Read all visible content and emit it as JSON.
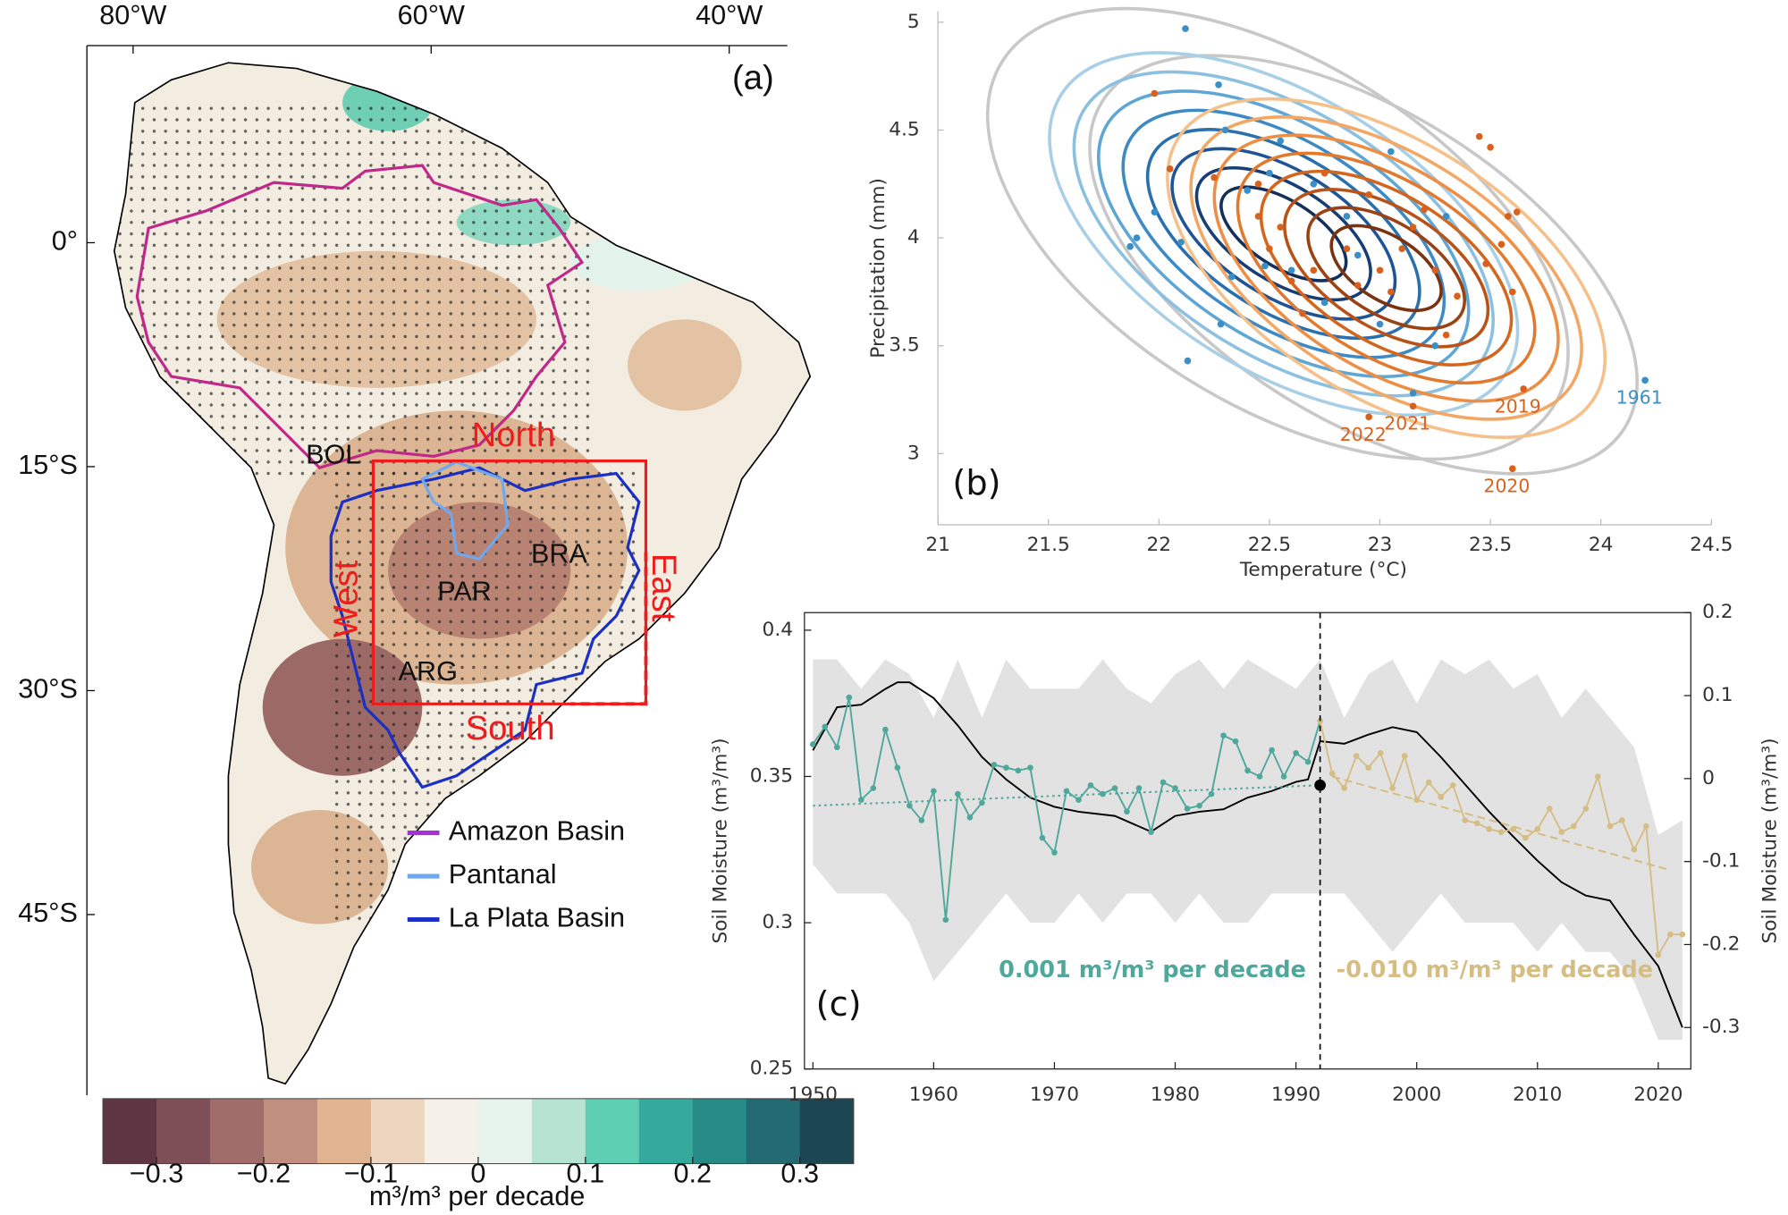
{
  "chart_data": [
    {
      "type": "map",
      "panel_label": "(a)",
      "xlim": [
        -83.1,
        -36.1
      ],
      "ylim": [
        -57.1,
        13.2
      ],
      "xticks": [
        {
          "value": -80,
          "label": "80°W"
        },
        {
          "value": -60,
          "label": "60°W"
        },
        {
          "value": -40,
          "label": "40°W"
        }
      ],
      "yticks": [
        {
          "value": 0,
          "label": "0°"
        },
        {
          "value": -15,
          "label": "15°S"
        },
        {
          "value": -30,
          "label": "30°S"
        },
        {
          "value": -45,
          "label": "45°S"
        }
      ],
      "countries": [
        "BOL",
        "BRA",
        "PAR",
        "ARG"
      ],
      "regions": [
        "North",
        "South",
        "East",
        "West"
      ],
      "legend": [
        {
          "name": "Amazon Basin",
          "color": "#a431d6"
        },
        {
          "name": "Pantanal",
          "color": "#6fa8ee"
        },
        {
          "name": "La Plata Basin",
          "color": "#1a2fc4"
        }
      ],
      "colorbar": {
        "label": "m³/m³ per decade",
        "colors": [
          "#5e3543",
          "#7e4f57",
          "#a06d6a",
          "#c08f80",
          "#e0b48f",
          "#ecd6bf",
          "#f6f1e8",
          "#e7f4ee",
          "#b7e3d2",
          "#5fcfb3",
          "#35a99c",
          "#268a87",
          "#236a73",
          "#1c4652"
        ],
        "lim": [
          -0.35,
          0.35
        ],
        "ticks": [
          {
            "value": -0.3,
            "label": "−0.3"
          },
          {
            "value": -0.2,
            "label": "−0.2"
          },
          {
            "value": -0.1,
            "label": "−0.1"
          },
          0,
          0.1,
          0.2,
          0.3
        ]
      }
    },
    {
      "type": "scatter",
      "panel_label": "(b)",
      "x_label": "Temperature (°C)",
      "y_label": "Precipitation (mm)",
      "xlim": [
        21,
        24.5
      ],
      "ylim": [
        2.67,
        5.05
      ],
      "xticks": [
        21,
        21.5,
        22,
        22.5,
        23,
        23.5,
        24,
        24.5
      ],
      "yticks": [
        3,
        3.5,
        4,
        4.5,
        5
      ],
      "series": [
        {
          "color": "#3a8fc7",
          "x": [
            22.12,
            22.27,
            21.87,
            21.9,
            22.1,
            22.13,
            22.28,
            22.3,
            22.4,
            22.5,
            22.48,
            22.33,
            22.6,
            22.75,
            22.7,
            22.85,
            22.9,
            23.0,
            23.15,
            23.25,
            23.3,
            23.05,
            22.55,
            21.98,
            24.2
          ],
          "y": [
            4.97,
            4.71,
            3.96,
            4.0,
            3.98,
            3.43,
            3.6,
            4.5,
            4.22,
            4.3,
            3.87,
            3.82,
            3.85,
            3.7,
            4.25,
            4.1,
            3.92,
            3.6,
            3.28,
            3.5,
            4.1,
            4.4,
            4.45,
            4.12,
            3.34
          ],
          "point_labels": [
            null,
            null,
            null,
            null,
            null,
            null,
            null,
            null,
            null,
            null,
            null,
            null,
            null,
            null,
            null,
            null,
            null,
            null,
            null,
            null,
            null,
            null,
            null,
            null,
            "1961"
          ]
        },
        {
          "color": "#d9611c",
          "x": [
            21.98,
            22.05,
            22.25,
            22.45,
            22.45,
            22.5,
            22.55,
            22.6,
            22.65,
            22.7,
            22.75,
            22.85,
            22.9,
            22.95,
            23.0,
            23.05,
            23.1,
            23.15,
            23.2,
            23.25,
            23.3,
            23.35,
            23.48,
            23.55,
            23.6,
            23.58,
            23.45,
            23.5,
            23.62,
            23.65,
            23.6,
            23.15,
            22.95
          ],
          "y": [
            4.67,
            4.32,
            4.28,
            4.25,
            4.1,
            3.95,
            4.05,
            3.8,
            3.65,
            3.85,
            4.3,
            3.95,
            3.78,
            4.2,
            3.85,
            3.75,
            3.95,
            4.05,
            4.13,
            3.85,
            3.55,
            3.73,
            3.88,
            3.97,
            3.75,
            4.1,
            4.47,
            4.42,
            4.12,
            3.3,
            2.93,
            3.22,
            3.17
          ],
          "point_labels": [
            null,
            null,
            null,
            null,
            null,
            null,
            null,
            null,
            null,
            null,
            null,
            null,
            null,
            null,
            null,
            null,
            null,
            null,
            null,
            null,
            null,
            null,
            null,
            null,
            null,
            null,
            null,
            null,
            null,
            "2019",
            "2020",
            "2021",
            "2022"
          ]
        }
      ]
    },
    {
      "type": "line",
      "panel_label": "(c)",
      "y_label": "Soil Moisture (m³/m³)",
      "y2_label": "Soil Moisture (m³/m³)",
      "xlim": [
        1949.3,
        2022.7
      ],
      "xticks": [
        1950,
        1960,
        1970,
        1980,
        1990,
        2000,
        2010,
        2020
      ],
      "ylim": [
        0.25,
        0.406
      ],
      "yticks": [
        0.25,
        0.3,
        0.35,
        0.4
      ],
      "y2lim": [
        -0.35,
        0.2
      ],
      "y2ticks": [
        -0.3,
        -0.2,
        -0.1,
        0,
        0.1,
        0.2
      ],
      "band": {
        "color": "#e2e2e2",
        "x": [
          1950,
          1952,
          1954,
          1956,
          1958,
          1960,
          1962,
          1964,
          1966,
          1968,
          1970,
          1972,
          1974,
          1976,
          1978,
          1980,
          1982,
          1984,
          1986,
          1988,
          1990,
          1992,
          1994,
          1996,
          1998,
          2000,
          2002,
          2004,
          2006,
          2008,
          2010,
          2012,
          2014,
          2016,
          2018,
          2020,
          2022
        ],
        "upper": [
          0.39,
          0.39,
          0.38,
          0.39,
          0.385,
          0.37,
          0.39,
          0.37,
          0.39,
          0.38,
          0.38,
          0.38,
          0.39,
          0.38,
          0.375,
          0.385,
          0.39,
          0.38,
          0.39,
          0.385,
          0.38,
          0.39,
          0.37,
          0.385,
          0.39,
          0.375,
          0.39,
          0.385,
          0.39,
          0.38,
          0.385,
          0.37,
          0.38,
          0.37,
          0.36,
          0.33,
          0.335
        ],
        "lower": [
          0.32,
          0.31,
          0.31,
          0.31,
          0.3,
          0.28,
          0.29,
          0.3,
          0.31,
          0.3,
          0.3,
          0.31,
          0.3,
          0.31,
          0.31,
          0.3,
          0.31,
          0.3,
          0.3,
          0.31,
          0.31,
          0.31,
          0.31,
          0.3,
          0.29,
          0.3,
          0.31,
          0.3,
          0.3,
          0.3,
          0.29,
          0.3,
          0.29,
          0.29,
          0.28,
          0.26,
          0.26
        ]
      },
      "series": [
        {
          "color": "#000000",
          "axis": "y2",
          "x": [
            1950,
            1952,
            1954,
            1956,
            1957,
            1958,
            1960,
            1962,
            1964,
            1966,
            1968,
            1970,
            1972,
            1975,
            1978,
            1980,
            1982,
            1984,
            1986,
            1988,
            1990,
            1991,
            1992,
            1994,
            1996,
            1998,
            2000,
            2002,
            2004,
            2006,
            2008,
            2010,
            2012,
            2014,
            2016,
            2018,
            2020,
            2022
          ],
          "values": [
            0.034,
            0.086,
            0.089,
            0.108,
            0.116,
            0.116,
            0.097,
            0.064,
            0.026,
            -0.001,
            -0.023,
            -0.034,
            -0.04,
            -0.045,
            -0.064,
            -0.045,
            -0.04,
            -0.037,
            -0.023,
            -0.015,
            -0.004,
            -0.001,
            0.045,
            0.042,
            0.053,
            0.062,
            0.056,
            0.026,
            -0.007,
            -0.04,
            -0.07,
            -0.099,
            -0.125,
            -0.141,
            -0.147,
            -0.188,
            -0.226,
            -0.3
          ]
        },
        {
          "color": "#4fa89b",
          "markers": true,
          "x": [
            1950,
            1951,
            1952,
            1953,
            1954,
            1955,
            1956,
            1957,
            1958,
            1959,
            1960,
            1961,
            1962,
            1963,
            1964,
            1965,
            1966,
            1967,
            1968,
            1969,
            1970,
            1971,
            1972,
            1973,
            1974,
            1975,
            1976,
            1977,
            1978,
            1979,
            1980,
            1981,
            1982,
            1983,
            1984,
            1985,
            1986,
            1987,
            1988,
            1989,
            1990,
            1991,
            1992
          ],
          "values": [
            0.361,
            0.367,
            0.36,
            0.377,
            0.342,
            0.346,
            0.366,
            0.353,
            0.34,
            0.335,
            0.345,
            0.301,
            0.344,
            0.336,
            0.341,
            0.354,
            0.353,
            0.352,
            0.353,
            0.329,
            0.324,
            0.345,
            0.342,
            0.347,
            0.344,
            0.346,
            0.338,
            0.346,
            0.331,
            0.348,
            0.346,
            0.339,
            0.34,
            0.344,
            0.364,
            0.362,
            0.352,
            0.35,
            0.359,
            0.35,
            0.358,
            0.355,
            0.369
          ]
        },
        {
          "color": "#d6bd84",
          "markers": true,
          "x": [
            1992,
            1993,
            1994,
            1995,
            1996,
            1997,
            1998,
            1999,
            2000,
            2001,
            2002,
            2003,
            2004,
            2005,
            2006,
            2007,
            2008,
            2009,
            2010,
            2011,
            2012,
            2013,
            2014,
            2015,
            2016,
            2017,
            2018,
            2019,
            2020,
            2021,
            2022
          ],
          "values": [
            0.369,
            0.351,
            0.346,
            0.357,
            0.353,
            0.358,
            0.346,
            0.357,
            0.342,
            0.348,
            0.343,
            0.347,
            0.335,
            0.334,
            0.332,
            0.331,
            0.332,
            0.329,
            0.332,
            0.339,
            0.331,
            0.333,
            0.339,
            0.35,
            0.333,
            0.335,
            0.325,
            0.333,
            0.289,
            0.296,
            0.296
          ]
        },
        {
          "color": "#4fa89b",
          "style": "dotted",
          "x": [
            1950,
            1992
          ],
          "values": [
            0.34,
            0.347
          ]
        },
        {
          "color": "#d6bd84",
          "style": "dashed",
          "x": [
            1993,
            2021
          ],
          "values": [
            0.35,
            0.318
          ]
        }
      ],
      "change_point": {
        "x": 1992,
        "y": 0.347
      },
      "annotations": [
        {
          "text": "0.001 m³/m³ per decade",
          "color": "#4fa89b"
        },
        {
          "text": "-0.010 m³/m³ per decade",
          "color": "#d6bd84"
        }
      ]
    }
  ]
}
